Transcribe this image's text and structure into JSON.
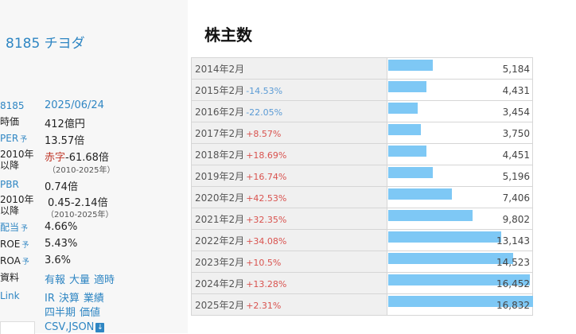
{
  "stock": {
    "code_name": "8185 チヨダ"
  },
  "info": {
    "code": "8185",
    "date": "2025/06/24",
    "market_cap_label": "時価",
    "market_cap": "412億円",
    "per_label": "PER",
    "per_suffix": "予",
    "per": "13.57倍",
    "per_hist_label1": "2010年",
    "per_hist_label2": "以降",
    "per_hist_red": "赤字",
    "per_hist_value": "-61.68倍",
    "per_hist_range": "（2010-2025年）",
    "pbr_label": "PBR",
    "pbr": "0.74倍",
    "pbr_hist_label1": "2010年",
    "pbr_hist_label2": "以降",
    "pbr_hist_value": "0.45-2.14倍",
    "pbr_hist_range": "（2010-2025年）",
    "div_label": "配当",
    "div_suffix": "予",
    "div": "4.66%",
    "roe_label": "ROE",
    "roe_suffix": "予",
    "roe": "5.43%",
    "roa_label": "ROA",
    "roa_suffix": "予",
    "roa": "3.6%",
    "docs_label": "資料",
    "docs_links": [
      "有報",
      "大量",
      "適時"
    ],
    "link_label": "Link",
    "links_row1": [
      "IR",
      "決算",
      "業績"
    ],
    "links_row2": [
      "四半期",
      "価値"
    ],
    "csv_json": "CSV,JSON"
  },
  "chart_data": {
    "type": "table",
    "title": "株主数",
    "bar_color": "#7ec8f5",
    "max": 16832,
    "rows": [
      {
        "year": "2014年2月",
        "change": "",
        "value": 5184,
        "value_label": "5,184"
      },
      {
        "year": "2015年2月",
        "change": "-14.53%",
        "value": 4431,
        "value_label": "4,431"
      },
      {
        "year": "2016年2月",
        "change": "-22.05%",
        "value": 3454,
        "value_label": "3,454"
      },
      {
        "year": "2017年2月",
        "change": "+8.57%",
        "value": 3750,
        "value_label": "3,750"
      },
      {
        "year": "2018年2月",
        "change": "+18.69%",
        "value": 4451,
        "value_label": "4,451"
      },
      {
        "year": "2019年2月",
        "change": "+16.74%",
        "value": 5196,
        "value_label": "5,196"
      },
      {
        "year": "2020年2月",
        "change": "+42.53%",
        "value": 7406,
        "value_label": "7,406"
      },
      {
        "year": "2021年2月",
        "change": "+32.35%",
        "value": 9802,
        "value_label": "9,802"
      },
      {
        "year": "2022年2月",
        "change": "+34.08%",
        "value": 13143,
        "value_label": "13,143"
      },
      {
        "year": "2023年2月",
        "change": "+10.5%",
        "value": 14523,
        "value_label": "14,523"
      },
      {
        "year": "2024年2月",
        "change": "+13.28%",
        "value": 16452,
        "value_label": "16,452"
      },
      {
        "year": "2025年2月",
        "change": "+2.31%",
        "value": 16832,
        "value_label": "16,832"
      }
    ]
  }
}
